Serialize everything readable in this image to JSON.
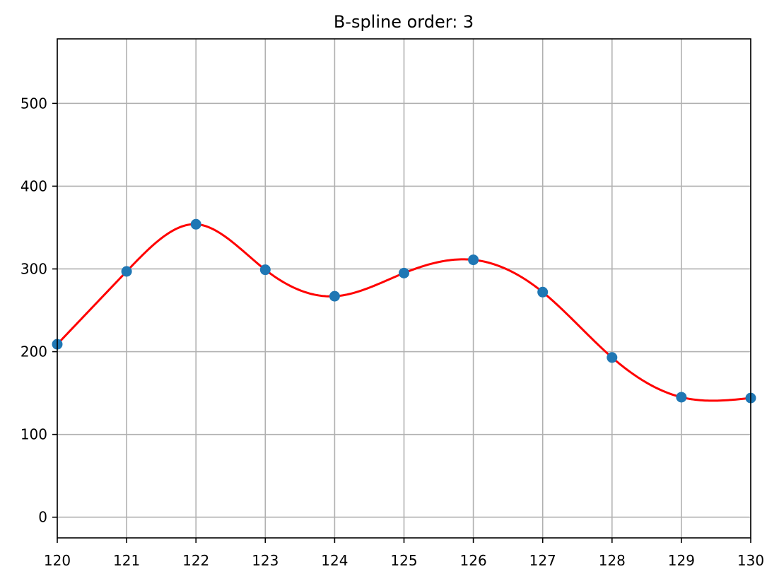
{
  "chart_data": {
    "type": "line",
    "title": "B-spline order: 3",
    "xlabel": "",
    "ylabel": "",
    "xlim": [
      120,
      130
    ],
    "ylim": [
      -25,
      578
    ],
    "x_ticks": [
      120,
      121,
      122,
      123,
      124,
      125,
      126,
      127,
      128,
      129,
      130
    ],
    "y_ticks": [
      0,
      100,
      200,
      300,
      400,
      500
    ],
    "grid": true,
    "legend": "none",
    "series": [
      {
        "kind": "scatter",
        "color": "#1f77b4",
        "x": [
          120,
          121,
          122,
          123,
          124,
          125,
          126,
          127,
          128,
          129,
          130
        ],
        "y": [
          209,
          297,
          354,
          299,
          267,
          295,
          311,
          272,
          193,
          145,
          144
        ]
      },
      {
        "kind": "spline",
        "color": "#ff0000",
        "x": [
          120,
          121,
          122,
          123,
          124,
          125,
          126,
          127,
          128,
          129,
          130
        ],
        "y": [
          209,
          297,
          354,
          299,
          267,
          295,
          311,
          272,
          193,
          145,
          144
        ]
      }
    ]
  }
}
